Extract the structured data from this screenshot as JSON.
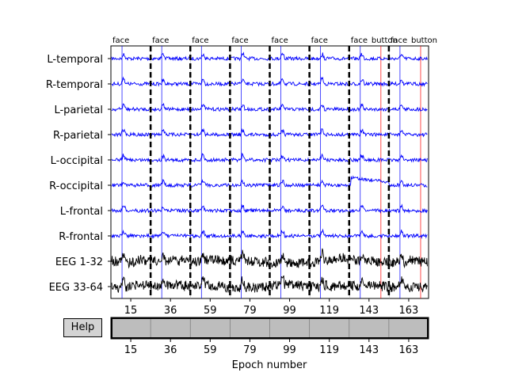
{
  "channels": [
    "L-temporal",
    "R-temporal",
    "L-parietal",
    "R-parietal",
    "L-occipital",
    "R-occipital",
    "L-frontal",
    "R-frontal",
    "EEG 1-32",
    "EEG 33-64"
  ],
  "channel_colors": [
    "#0000ff",
    "#0000ff",
    "#0000ff",
    "#0000ff",
    "#0000ff",
    "#0000ff",
    "#0000ff",
    "#0000ff",
    "#000000",
    "#000000"
  ],
  "event_labels": [
    "face",
    "face",
    "face",
    "face",
    "face",
    "face",
    "face",
    "button",
    "face",
    "button"
  ],
  "event_colors": {
    "face": "#0000ff",
    "button": "#ff0000"
  },
  "epoch_ticks": [
    "15",
    "36",
    "59",
    "79",
    "99",
    "119",
    "143",
    "163"
  ],
  "xlabel": "Epoch number",
  "help_label": "Help",
  "scrollbar": {
    "visible_fraction": 1.0,
    "start_fraction": 0.0
  }
}
